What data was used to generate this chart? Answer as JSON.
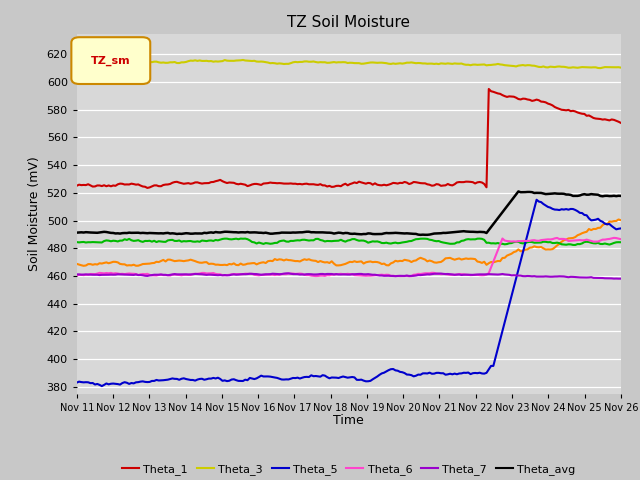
{
  "title": "TZ Soil Moisture",
  "xlabel": "Time",
  "ylabel": "Soil Moisture (mV)",
  "ylim": [
    375,
    635
  ],
  "yticks": [
    380,
    400,
    420,
    440,
    460,
    480,
    500,
    520,
    540,
    560,
    580,
    600,
    620
  ],
  "x_labels": [
    "Nov 11",
    "Nov 12",
    "Nov 13",
    "Nov 14",
    "Nov 15",
    "Nov 16",
    "Nov 17",
    "Nov 18",
    "Nov 19",
    "Nov 20",
    "Nov 21",
    "Nov 22",
    "Nov 23",
    "Nov 24",
    "Nov 25",
    "Nov 26"
  ],
  "n_points": 240,
  "transition_idx": 180,
  "background_color": "#c8c8c8",
  "plot_bg_color": "#d8d8d8",
  "legend_label": "TZ_sm",
  "series": {
    "Theta_1": {
      "color": "#cc0000",
      "lw": 1.5
    },
    "Theta_2": {
      "color": "#ff8800",
      "lw": 1.5
    },
    "Theta_3": {
      "color": "#cccc00",
      "lw": 1.5
    },
    "Theta_4": {
      "color": "#00bb00",
      "lw": 1.5
    },
    "Theta_5": {
      "color": "#0000cc",
      "lw": 1.5
    },
    "Theta_6": {
      "color": "#ff44cc",
      "lw": 1.5
    },
    "Theta_7": {
      "color": "#9900cc",
      "lw": 1.5
    },
    "Theta_avg": {
      "color": "#000000",
      "lw": 1.8
    }
  }
}
